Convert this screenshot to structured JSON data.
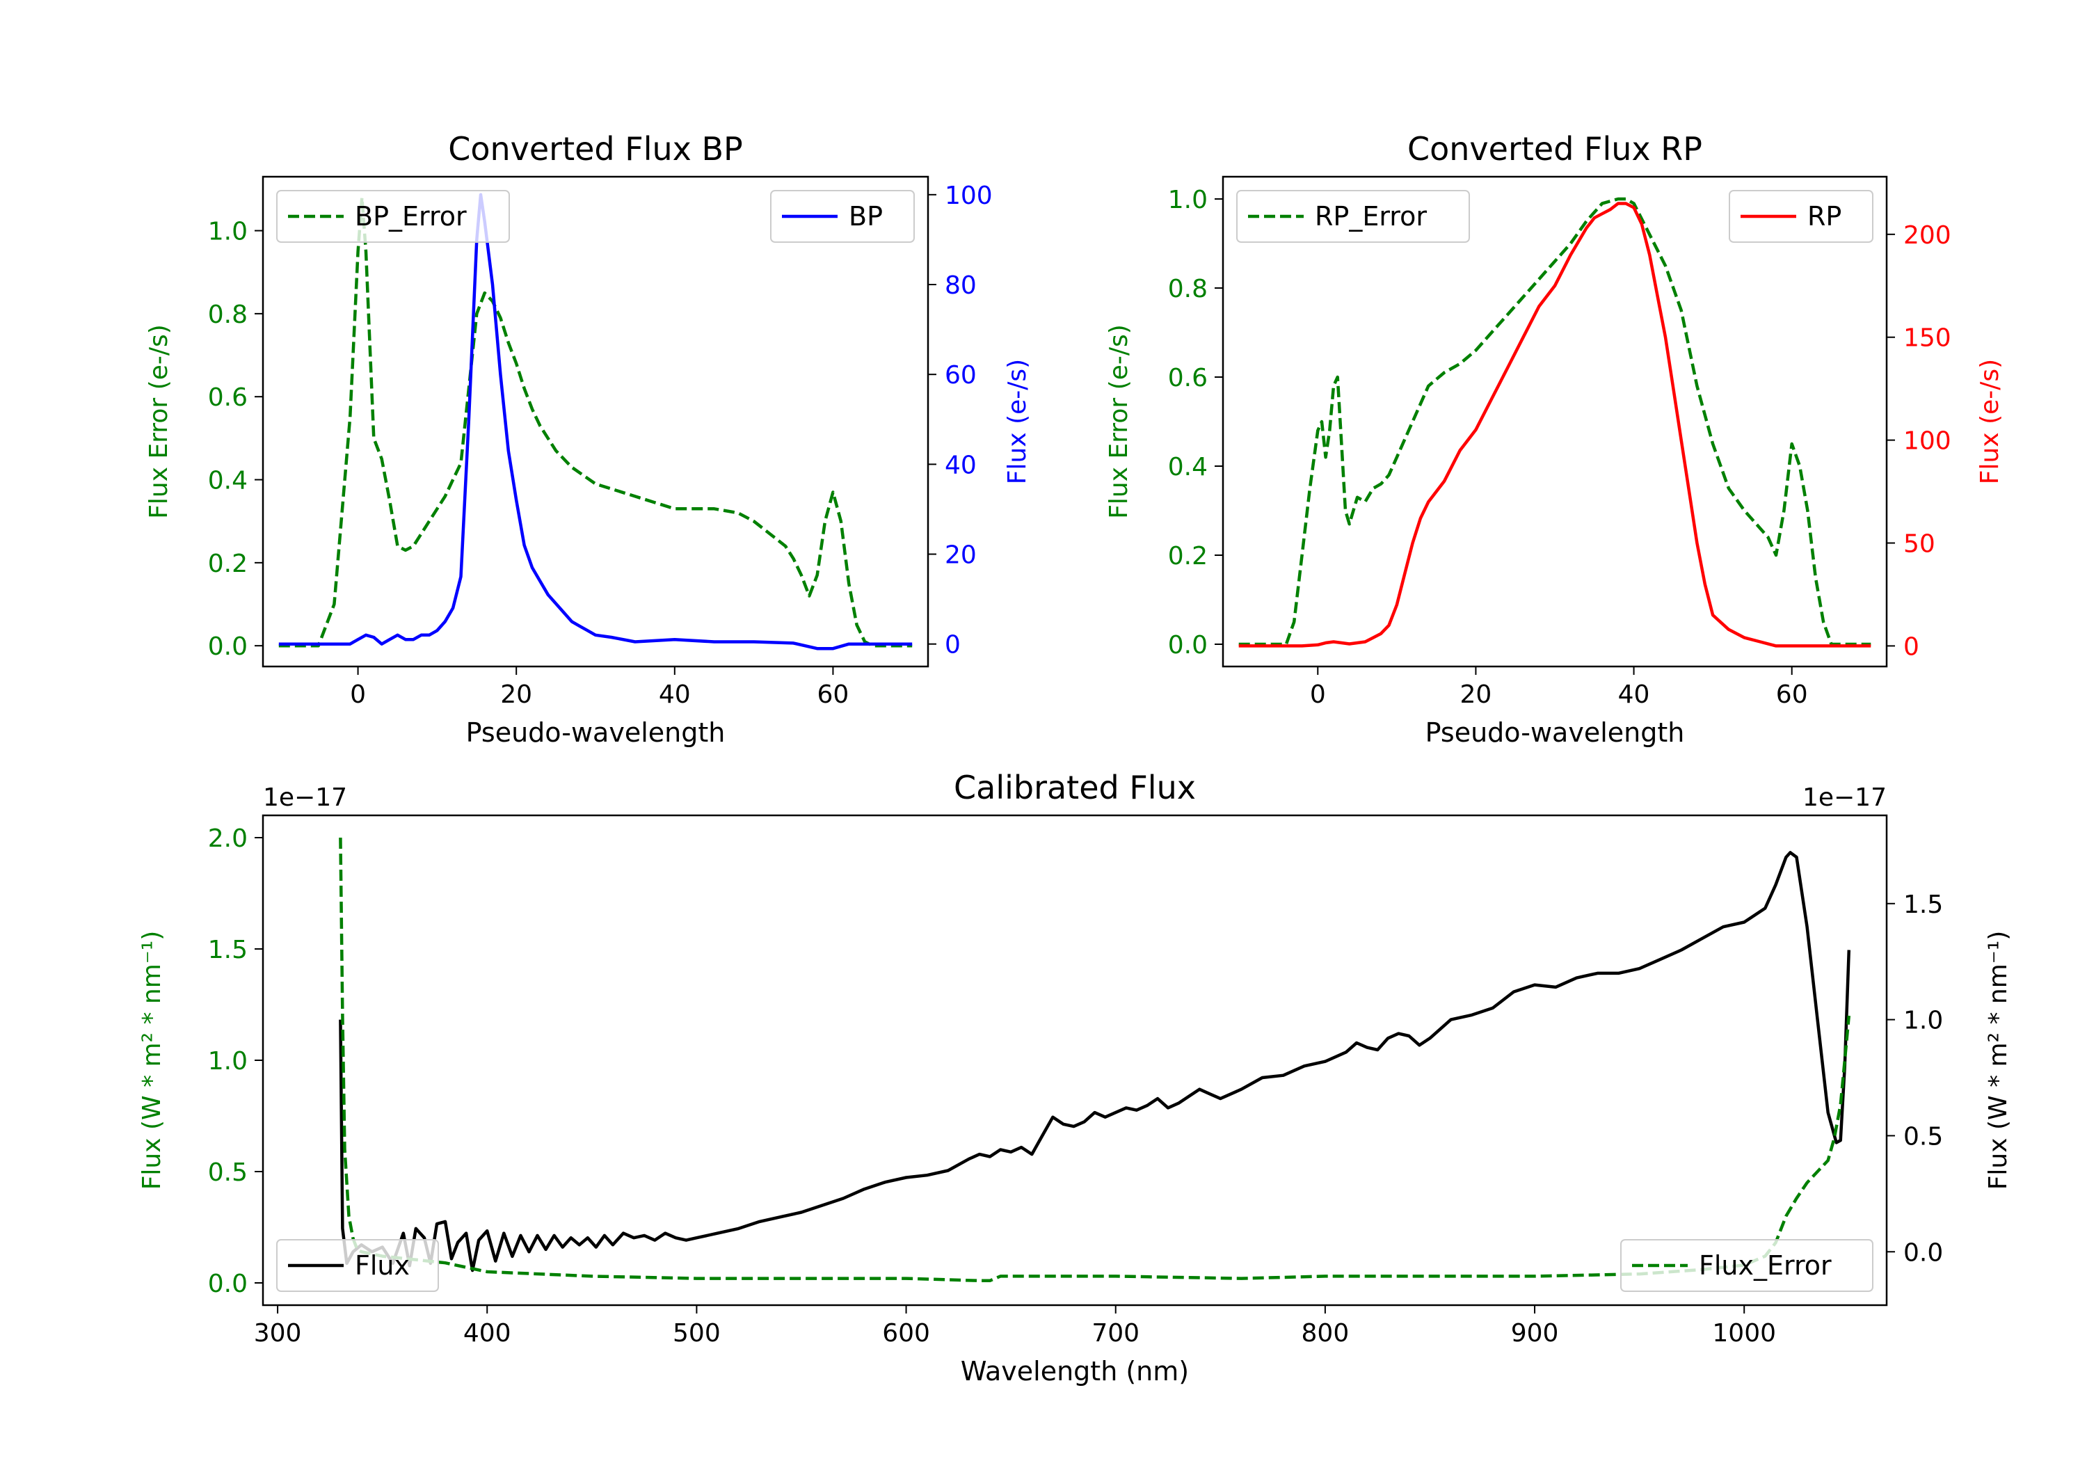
{
  "chart_data": [
    {
      "type": "line",
      "title": "Converted Flux BP",
      "xlabel": "Pseudo-wavelength",
      "ylabel_left": "Flux Error (e-/s)",
      "ylabel_right": "Flux (e-/s)",
      "xlim": [
        -12,
        72
      ],
      "ylim_left": [
        -0.05,
        1.13
      ],
      "ylim_right": [
        -5,
        104
      ],
      "x_ticks": [
        "0",
        "20",
        "40",
        "60"
      ],
      "y_ticks_left": [
        "0.0",
        "0.2",
        "0.4",
        "0.6",
        "0.8",
        "1.0"
      ],
      "y_ticks_right": [
        "0",
        "20",
        "40",
        "60",
        "80",
        "100"
      ],
      "legend_left": "BP_Error",
      "legend_right": "BP",
      "series": [
        {
          "name": "BP_Error",
          "axis": "left",
          "color": "#008000",
          "style": "dashed",
          "x": [
            -10,
            -5,
            -3,
            -1,
            0,
            0.5,
            1,
            2,
            3,
            4,
            5,
            6,
            7,
            8,
            9,
            10,
            11,
            12,
            13,
            14,
            15,
            16,
            17,
            18,
            19,
            20,
            21,
            22,
            23,
            24,
            25,
            27,
            30,
            35,
            40,
            45,
            48,
            50,
            52,
            54,
            55,
            56,
            57,
            58,
            59,
            60,
            61,
            62,
            63,
            64,
            65,
            70
          ],
          "y": [
            0,
            0,
            0.1,
            0.55,
            0.95,
            1.08,
            0.95,
            0.5,
            0.45,
            0.35,
            0.24,
            0.23,
            0.24,
            0.27,
            0.3,
            0.33,
            0.36,
            0.4,
            0.44,
            0.62,
            0.8,
            0.85,
            0.83,
            0.79,
            0.73,
            0.68,
            0.62,
            0.57,
            0.53,
            0.5,
            0.47,
            0.43,
            0.39,
            0.36,
            0.33,
            0.33,
            0.32,
            0.3,
            0.27,
            0.24,
            0.21,
            0.17,
            0.12,
            0.17,
            0.3,
            0.37,
            0.3,
            0.15,
            0.05,
            0.01,
            0,
            0
          ]
        },
        {
          "name": "BP",
          "axis": "right",
          "color": "#0000ff",
          "style": "solid",
          "x": [
            -10,
            -3,
            -1,
            0,
            1,
            2,
            3,
            4,
            5,
            6,
            7,
            8,
            9,
            10,
            11,
            12,
            13,
            14,
            15,
            15.5,
            16,
            17,
            18,
            19,
            20,
            21,
            22,
            23,
            24,
            25,
            26,
            27,
            28,
            29,
            30,
            32,
            35,
            40,
            45,
            50,
            55,
            58,
            60,
            62,
            65,
            70
          ],
          "y": [
            0,
            0,
            0,
            1,
            2,
            1.5,
            0,
            1,
            2,
            1,
            1,
            2,
            2,
            3,
            5,
            8,
            15,
            50,
            90,
            100,
            94,
            80,
            60,
            43,
            32,
            22,
            17,
            14,
            11,
            9,
            7,
            5,
            4,
            3,
            2,
            1.5,
            0.5,
            1,
            0.5,
            0.5,
            0.2,
            -1,
            -1,
            0,
            0,
            0
          ]
        }
      ]
    },
    {
      "type": "line",
      "title": "Converted Flux RP",
      "xlabel": "Pseudo-wavelength",
      "ylabel_left": "Flux Error (e-/s)",
      "ylabel_right": "Flux (e-/s)",
      "xlim": [
        -12,
        72
      ],
      "ylim_left": [
        -0.05,
        1.05
      ],
      "ylim_right": [
        -10,
        228
      ],
      "x_ticks": [
        "0",
        "20",
        "40",
        "60"
      ],
      "y_ticks_left": [
        "0.0",
        "0.2",
        "0.4",
        "0.6",
        "0.8",
        "1.0"
      ],
      "y_ticks_right": [
        "0",
        "50",
        "100",
        "150",
        "200"
      ],
      "legend_left": "RP_Error",
      "legend_right": "RP",
      "series": [
        {
          "name": "RP_Error",
          "axis": "left",
          "color": "#008000",
          "style": "dashed",
          "x": [
            -10,
            -4,
            -3,
            -2,
            -1,
            0,
            0.5,
            1,
            1.5,
            2,
            2.5,
            3,
            3.5,
            4,
            5,
            6,
            7,
            8,
            9,
            10,
            12,
            14,
            16,
            18,
            20,
            22,
            24,
            26,
            28,
            30,
            32,
            34,
            36,
            38,
            39,
            40,
            42,
            44,
            46,
            48,
            50,
            52,
            54,
            56,
            57,
            58,
            59,
            60,
            61,
            62,
            63,
            64,
            65,
            70
          ],
          "y": [
            0,
            0,
            0.05,
            0.2,
            0.35,
            0.48,
            0.5,
            0.42,
            0.48,
            0.58,
            0.6,
            0.45,
            0.3,
            0.27,
            0.33,
            0.32,
            0.35,
            0.36,
            0.38,
            0.42,
            0.5,
            0.58,
            0.61,
            0.63,
            0.66,
            0.7,
            0.74,
            0.78,
            0.82,
            0.86,
            0.9,
            0.95,
            0.99,
            1.0,
            1.0,
            0.99,
            0.92,
            0.85,
            0.75,
            0.58,
            0.45,
            0.35,
            0.3,
            0.26,
            0.24,
            0.2,
            0.3,
            0.45,
            0.4,
            0.3,
            0.15,
            0.05,
            0,
            0
          ]
        },
        {
          "name": "RP",
          "axis": "right",
          "color": "#ff0000",
          "style": "solid",
          "x": [
            -10,
            -2,
            0,
            1,
            2,
            3,
            4,
            5,
            6,
            7,
            8,
            9,
            10,
            11,
            12,
            13,
            14,
            16,
            18,
            20,
            22,
            24,
            26,
            28,
            30,
            32,
            34,
            35,
            36,
            37,
            38,
            39,
            40,
            41,
            42,
            43,
            44,
            45,
            46,
            47,
            48,
            49,
            50,
            52,
            54,
            56,
            58,
            60,
            65,
            70
          ],
          "y": [
            0,
            0,
            0.5,
            1.5,
            2,
            1.5,
            1,
            1.5,
            2,
            4,
            6,
            10,
            20,
            35,
            50,
            62,
            70,
            80,
            95,
            105,
            120,
            135,
            150,
            165,
            175,
            190,
            203,
            208,
            210,
            212,
            215,
            215,
            213,
            205,
            190,
            170,
            150,
            125,
            100,
            75,
            50,
            30,
            15,
            8,
            4,
            2,
            0,
            0,
            0,
            0
          ]
        }
      ]
    },
    {
      "type": "line",
      "title": "Calibrated Flux",
      "xlabel": "Wavelength (nm)",
      "ylabel_left": "Flux (W * m² * nm⁻¹)",
      "ylabel_right": "Flux (W * m² * nm⁻¹)",
      "offset_left": "1e−17",
      "offset_right": "1e−17",
      "xlim": [
        293,
        1068
      ],
      "ylim_left": [
        -0.1,
        2.1
      ],
      "ylim_right": [
        -0.23,
        1.88
      ],
      "x_ticks": [
        "300",
        "400",
        "500",
        "600",
        "700",
        "800",
        "900",
        "1000"
      ],
      "y_ticks_left": [
        "0.0",
        "0.5",
        "1.0",
        "1.5",
        "2.0"
      ],
      "y_ticks_right": [
        "0.0",
        "0.5",
        "1.0",
        "1.5"
      ],
      "legend_left": "Flux",
      "legend_right": "Flux_Error",
      "series": [
        {
          "name": "Flux",
          "axis": "right",
          "color": "#000000",
          "style": "solid",
          "x": [
            330,
            331,
            333,
            336,
            340,
            345,
            350,
            355,
            360,
            363,
            366,
            370,
            373,
            376,
            380,
            383,
            386,
            390,
            393,
            396,
            400,
            404,
            408,
            412,
            416,
            420,
            424,
            428,
            432,
            436,
            440,
            444,
            448,
            452,
            456,
            460,
            465,
            470,
            475,
            480,
            485,
            490,
            495,
            500,
            510,
            520,
            530,
            540,
            550,
            560,
            570,
            580,
            590,
            600,
            610,
            620,
            630,
            635,
            640,
            645,
            650,
            655,
            660,
            665,
            670,
            675,
            680,
            685,
            690,
            695,
            700,
            705,
            710,
            715,
            720,
            725,
            730,
            735,
            740,
            745,
            750,
            760,
            770,
            780,
            790,
            800,
            810,
            815,
            820,
            825,
            830,
            835,
            840,
            845,
            850,
            860,
            870,
            880,
            890,
            900,
            910,
            920,
            930,
            940,
            950,
            960,
            970,
            980,
            990,
            1000,
            1010,
            1015,
            1020,
            1022,
            1025,
            1030,
            1035,
            1040,
            1044,
            1046,
            1048,
            1050
          ],
          "y": [
            1.0,
            0.1,
            -0.05,
            0.0,
            0.03,
            0.0,
            0.02,
            -0.05,
            0.08,
            -0.06,
            0.1,
            0.06,
            -0.05,
            0.12,
            0.13,
            -0.03,
            0.04,
            0.08,
            -0.08,
            0.05,
            0.09,
            -0.04,
            0.08,
            -0.02,
            0.07,
            0.0,
            0.07,
            0.01,
            0.07,
            0.02,
            0.06,
            0.03,
            0.06,
            0.02,
            0.07,
            0.03,
            0.08,
            0.06,
            0.07,
            0.05,
            0.08,
            0.06,
            0.05,
            0.06,
            0.08,
            0.1,
            0.13,
            0.15,
            0.17,
            0.2,
            0.23,
            0.27,
            0.3,
            0.32,
            0.33,
            0.35,
            0.4,
            0.42,
            0.41,
            0.44,
            0.43,
            0.45,
            0.42,
            0.5,
            0.58,
            0.55,
            0.54,
            0.56,
            0.6,
            0.58,
            0.6,
            0.62,
            0.61,
            0.63,
            0.66,
            0.62,
            0.64,
            0.67,
            0.7,
            0.68,
            0.66,
            0.7,
            0.75,
            0.76,
            0.8,
            0.82,
            0.86,
            0.9,
            0.88,
            0.87,
            0.92,
            0.94,
            0.93,
            0.89,
            0.92,
            1.0,
            1.02,
            1.05,
            1.12,
            1.15,
            1.14,
            1.18,
            1.2,
            1.2,
            1.22,
            1.26,
            1.3,
            1.35,
            1.4,
            1.42,
            1.48,
            1.58,
            1.7,
            1.72,
            1.7,
            1.4,
            1.0,
            0.6,
            0.47,
            0.48,
            0.8,
            1.3
          ]
        },
        {
          "name": "Flux_Error",
          "axis": "left",
          "color": "#008000",
          "style": "dashed",
          "x": [
            330,
            331,
            332,
            334,
            336,
            338,
            340,
            345,
            350,
            360,
            370,
            380,
            390,
            400,
            450,
            500,
            550,
            600,
            635,
            640,
            645,
            700,
            760,
            800,
            900,
            950,
            980,
            1000,
            1010,
            1015,
            1020,
            1025,
            1030,
            1035,
            1040,
            1043,
            1046,
            1048,
            1050
          ],
          "y": [
            2.0,
            1.2,
            0.6,
            0.3,
            0.2,
            0.15,
            0.14,
            0.13,
            0.12,
            0.11,
            0.1,
            0.09,
            0.07,
            0.05,
            0.03,
            0.02,
            0.02,
            0.02,
            0.01,
            0.01,
            0.03,
            0.03,
            0.02,
            0.03,
            0.03,
            0.04,
            0.06,
            0.08,
            0.12,
            0.18,
            0.3,
            0.38,
            0.45,
            0.5,
            0.55,
            0.65,
            0.8,
            1.0,
            1.2
          ]
        }
      ]
    }
  ]
}
